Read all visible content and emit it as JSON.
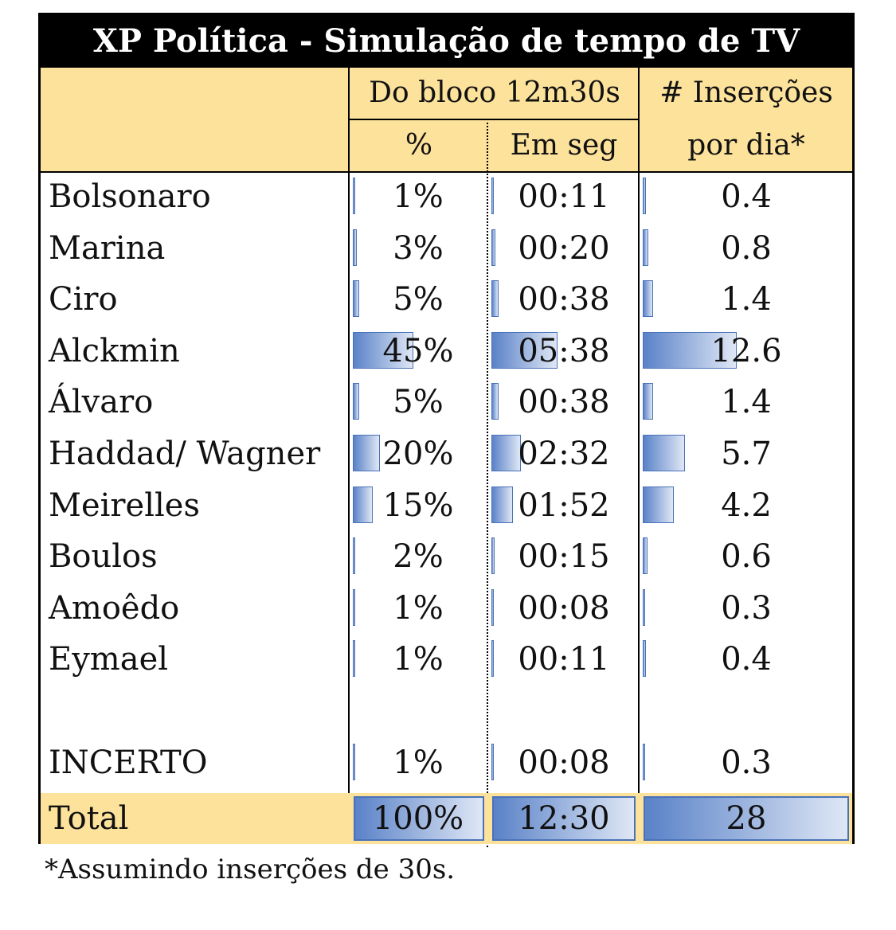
{
  "table": {
    "title": "XP Política - Simulação de tempo de TV",
    "header": {
      "group_label": "Do bloco 12m30s",
      "col_pct": "%",
      "col_sec": "Em seg",
      "col_ins_line1": "# Inserções",
      "col_ins_line2": "por dia*"
    },
    "rows": [
      {
        "name": "Bolsonaro",
        "pct": "1%",
        "sec": "00:11",
        "ins": "0.4",
        "pct_value": 1,
        "sec_value": 11,
        "ins_value": 0.4
      },
      {
        "name": "Marina",
        "pct": "3%",
        "sec": "00:20",
        "ins": "0.8",
        "pct_value": 3,
        "sec_value": 20,
        "ins_value": 0.8
      },
      {
        "name": "Ciro",
        "pct": "5%",
        "sec": "00:38",
        "ins": "1.4",
        "pct_value": 5,
        "sec_value": 38,
        "ins_value": 1.4
      },
      {
        "name": "Alckmin",
        "pct": "45%",
        "sec": "05:38",
        "ins": "12.6",
        "pct_value": 45,
        "sec_value": 338,
        "ins_value": 12.6
      },
      {
        "name": "Álvaro",
        "pct": "5%",
        "sec": "00:38",
        "ins": "1.4",
        "pct_value": 5,
        "sec_value": 38,
        "ins_value": 1.4
      },
      {
        "name": "Haddad/ Wagner",
        "pct": "20%",
        "sec": "02:32",
        "ins": "5.7",
        "pct_value": 20,
        "sec_value": 152,
        "ins_value": 5.7
      },
      {
        "name": "Meirelles",
        "pct": "15%",
        "sec": "01:52",
        "ins": "4.2",
        "pct_value": 15,
        "sec_value": 112,
        "ins_value": 4.2
      },
      {
        "name": "Boulos",
        "pct": "2%",
        "sec": "00:15",
        "ins": "0.6",
        "pct_value": 2,
        "sec_value": 15,
        "ins_value": 0.6
      },
      {
        "name": "Amoêdo",
        "pct": "1%",
        "sec": "00:08",
        "ins": "0.3",
        "pct_value": 1,
        "sec_value": 8,
        "ins_value": 0.3
      },
      {
        "name": "Eymael",
        "pct": "1%",
        "sec": "00:11",
        "ins": "0.4",
        "pct_value": 1,
        "sec_value": 11,
        "ins_value": 0.4
      },
      {
        "name": "",
        "pct": "",
        "sec": "",
        "ins": "",
        "pct_value": 0,
        "sec_value": 0,
        "ins_value": 0
      },
      {
        "name": "INCERTO",
        "pct": "1%",
        "sec": "00:08",
        "ins": "0.3",
        "pct_value": 1,
        "sec_value": 8,
        "ins_value": 0.3
      }
    ],
    "total": {
      "name": "Total",
      "pct": "100%",
      "sec": "12:30",
      "ins": "28"
    }
  },
  "footnote": "*Assumindo inserções de 30s.",
  "colors": {
    "header_bg": "#fce29b",
    "title_bg": "#000000",
    "bar_start": "#5a82c8",
    "bar_end": "#dfe7f5"
  }
}
